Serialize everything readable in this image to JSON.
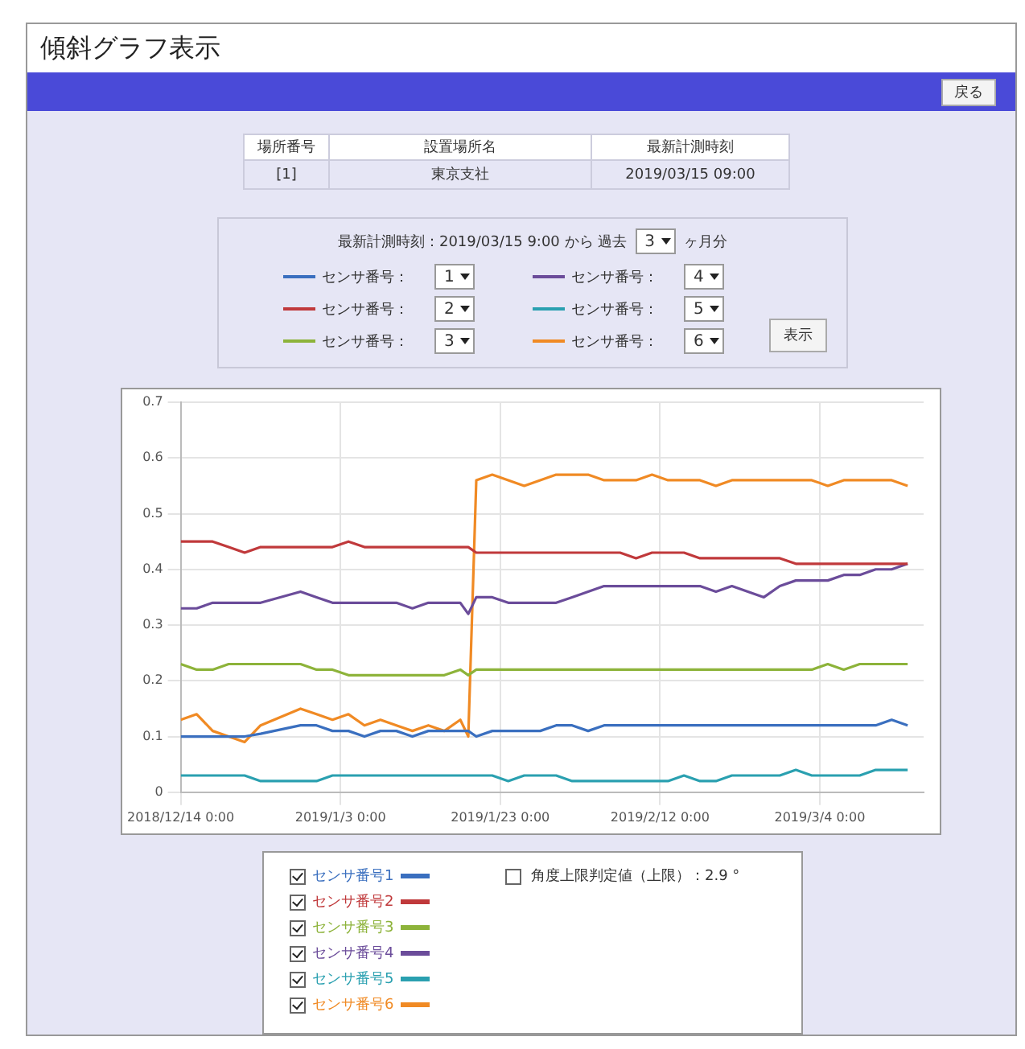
{
  "chart_data": {
    "type": "line",
    "title": "傾斜グラフ表示",
    "x": [
      "2018-12-14",
      "2018-12-16",
      "2018-12-18",
      "2018-12-20",
      "2018-12-22",
      "2018-12-24",
      "2018-12-29",
      "2018-12-31",
      "2019-01-02",
      "2019-01-04",
      "2019-01-06",
      "2019-01-08",
      "2019-01-10",
      "2019-01-12",
      "2019-01-14",
      "2019-01-16",
      "2019-01-18",
      "2019-01-19",
      "2019-01-20",
      "2019-01-22",
      "2019-01-24",
      "2019-01-26",
      "2019-01-28",
      "2019-01-30",
      "2019-02-01",
      "2019-02-03",
      "2019-02-05",
      "2019-02-07",
      "2019-02-09",
      "2019-02-11",
      "2019-02-13",
      "2019-02-15",
      "2019-02-17",
      "2019-02-19",
      "2019-02-21",
      "2019-02-23",
      "2019-02-25",
      "2019-02-27",
      "2019-03-01",
      "2019-03-03",
      "2019-03-05",
      "2019-03-07",
      "2019-03-09",
      "2019-03-11",
      "2019-03-13",
      "2019-03-15"
    ],
    "series": [
      {
        "name": "センサ番号1",
        "color": "#3a6fbf",
        "values": [
          0.1,
          0.1,
          0.1,
          0.1,
          0.1,
          0.105,
          0.12,
          0.12,
          0.11,
          0.11,
          0.1,
          0.11,
          0.11,
          0.1,
          0.11,
          0.11,
          0.11,
          0.11,
          0.1,
          0.11,
          0.11,
          0.11,
          0.11,
          0.12,
          0.12,
          0.11,
          0.12,
          0.12,
          0.12,
          0.12,
          0.12,
          0.12,
          0.12,
          0.12,
          0.12,
          0.12,
          0.12,
          0.12,
          0.12,
          0.12,
          0.12,
          0.12,
          0.12,
          0.12,
          0.13,
          0.12
        ]
      },
      {
        "name": "センサ番号2",
        "color": "#c0393b",
        "values": [
          0.45,
          0.45,
          0.45,
          0.44,
          0.43,
          0.44,
          0.44,
          0.44,
          0.44,
          0.45,
          0.44,
          0.44,
          0.44,
          0.44,
          0.44,
          0.44,
          0.44,
          0.44,
          0.43,
          0.43,
          0.43,
          0.43,
          0.43,
          0.43,
          0.43,
          0.43,
          0.43,
          0.43,
          0.42,
          0.43,
          0.43,
          0.43,
          0.42,
          0.42,
          0.42,
          0.42,
          0.42,
          0.42,
          0.41,
          0.41,
          0.41,
          0.41,
          0.41,
          0.41,
          0.41,
          0.41
        ]
      },
      {
        "name": "センサ番号3",
        "color": "#8db33a",
        "values": [
          0.23,
          0.22,
          0.22,
          0.23,
          0.23,
          0.23,
          0.23,
          0.22,
          0.22,
          0.21,
          0.21,
          0.21,
          0.21,
          0.21,
          0.21,
          0.21,
          0.22,
          0.21,
          0.22,
          0.22,
          0.22,
          0.22,
          0.22,
          0.22,
          0.22,
          0.22,
          0.22,
          0.22,
          0.22,
          0.22,
          0.22,
          0.22,
          0.22,
          0.22,
          0.22,
          0.22,
          0.22,
          0.22,
          0.22,
          0.22,
          0.23,
          0.22,
          0.23,
          0.23,
          0.23,
          0.23
        ]
      },
      {
        "name": "センサ番号4",
        "color": "#6b4c9a",
        "values": [
          0.33,
          0.33,
          0.34,
          0.34,
          0.34,
          0.34,
          0.36,
          0.35,
          0.34,
          0.34,
          0.34,
          0.34,
          0.34,
          0.33,
          0.34,
          0.34,
          0.34,
          0.32,
          0.35,
          0.35,
          0.34,
          0.34,
          0.34,
          0.34,
          0.35,
          0.36,
          0.37,
          0.37,
          0.37,
          0.37,
          0.37,
          0.37,
          0.37,
          0.36,
          0.37,
          0.36,
          0.35,
          0.37,
          0.38,
          0.38,
          0.38,
          0.39,
          0.39,
          0.4,
          0.4,
          0.41
        ]
      },
      {
        "name": "センサ番号5",
        "color": "#2aa0b0",
        "values": [
          0.03,
          0.03,
          0.03,
          0.03,
          0.03,
          0.02,
          0.02,
          0.02,
          0.03,
          0.03,
          0.03,
          0.03,
          0.03,
          0.03,
          0.03,
          0.03,
          0.03,
          0.03,
          0.03,
          0.03,
          0.02,
          0.03,
          0.03,
          0.03,
          0.02,
          0.02,
          0.02,
          0.02,
          0.02,
          0.02,
          0.02,
          0.03,
          0.02,
          0.02,
          0.03,
          0.03,
          0.03,
          0.03,
          0.04,
          0.03,
          0.03,
          0.03,
          0.03,
          0.04,
          0.04,
          0.04
        ]
      },
      {
        "name": "センサ番号6",
        "color": "#f08a24",
        "values": [
          0.13,
          0.14,
          0.11,
          0.1,
          0.09,
          0.12,
          0.15,
          0.14,
          0.13,
          0.14,
          0.12,
          0.13,
          0.12,
          0.11,
          0.12,
          0.11,
          0.13,
          0.1,
          0.56,
          0.57,
          0.56,
          0.55,
          0.56,
          0.57,
          0.57,
          0.57,
          0.56,
          0.56,
          0.56,
          0.57,
          0.56,
          0.56,
          0.56,
          0.55,
          0.56,
          0.56,
          0.56,
          0.56,
          0.56,
          0.56,
          0.55,
          0.56,
          0.56,
          0.56,
          0.56,
          0.55
        ]
      }
    ],
    "xlim": [
      "2018-12-14",
      "2019-03-17"
    ],
    "xticks": [
      {
        "value": "2018-12-14",
        "label": "2018/12/14 0:00"
      },
      {
        "value": "2019-01-03",
        "label": "2019/1/3 0:00"
      },
      {
        "value": "2019-01-23",
        "label": "2019/1/23 0:00"
      },
      {
        "value": "2019-02-12",
        "label": "2019/2/12 0:00"
      },
      {
        "value": "2019-03-04",
        "label": "2019/3/4 0:00"
      }
    ],
    "ylim": [
      0,
      0.7
    ],
    "yticks": [
      0,
      0.1,
      0.2,
      0.3,
      0.4,
      0.5,
      0.6,
      0.7
    ],
    "grid": true,
    "legend": "bottom",
    "marker": "none",
    "line_style": "solid",
    "annotations": [
      "戻る",
      "場所番号",
      "設置場所名",
      "最新計測時刻",
      "[1]",
      "東京支社",
      "2019/03/15 09:00",
      "最新計測時刻：2019/03/15 9:00 から 過去",
      "3",
      "ヶ月分",
      "センサ番号：",
      "1",
      "センサ番号：",
      "2",
      "センサ番号：",
      "3",
      "センサ番号：",
      "4",
      "センサ番号：",
      "5",
      "センサ番号：",
      "6",
      "表示",
      "角度上限判定値（上限）：2.9 °"
    ]
  }
}
